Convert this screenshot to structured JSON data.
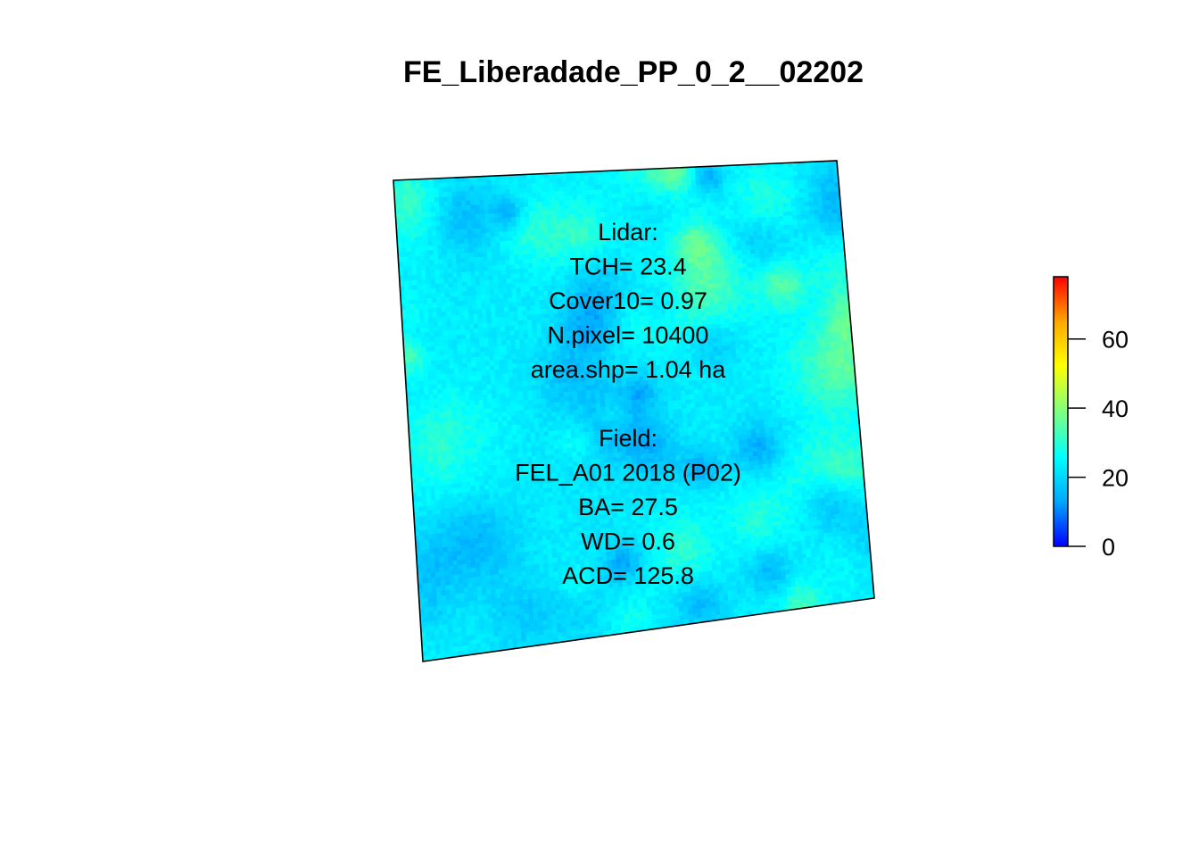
{
  "chart_data": {
    "type": "heatmap",
    "title": "FE_Liberadade_PP_0_2__02202",
    "xlabel": "",
    "ylabel": "",
    "colorbar": {
      "min": 0,
      "max": 78,
      "ticks": [
        0,
        20,
        40,
        60
      ],
      "tick_labels": [
        "0",
        "20",
        "40",
        "60"
      ],
      "placement": "right",
      "palette": [
        "#0000ff",
        "#00aaff",
        "#00ffff",
        "#7fff7f",
        "#ffff00",
        "#ffaa00",
        "#ff0000"
      ]
    },
    "raster": {
      "description_units": "canopy height (m)",
      "typical_range": [
        5,
        38
      ],
      "mean": 23.4,
      "rotated": true
    },
    "annotation_lines": [
      "Lidar:",
      "TCH= 23.4",
      "Cover10= 0.97",
      "N.pixel= 10400",
      "area.shp= 1.04 ha",
      "",
      "Field:",
      "FEL_A01 2018 (P02)",
      "BA= 27.5",
      "WD= 0.6",
      "ACD= 125.8"
    ]
  }
}
